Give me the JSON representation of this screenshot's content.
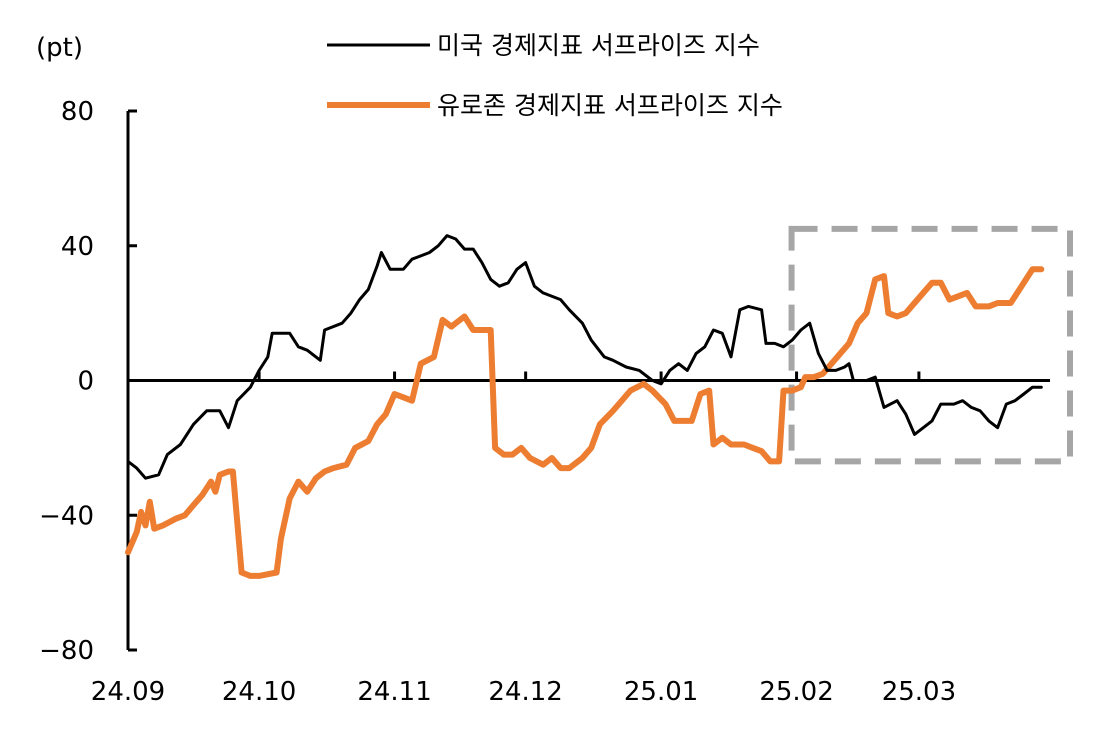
{
  "chart_data": {
    "type": "line",
    "ylabel": "(pt)",
    "ylim": [
      -80,
      80
    ],
    "yticks": [
      "80",
      "40",
      "0",
      "-40",
      "-80"
    ],
    "xlim": [
      "2024-09-01",
      "2025-03-31"
    ],
    "x_tick_labels": [
      "24.09",
      "24.10",
      "24.11",
      "24.12",
      "25.01",
      "25.02",
      "25.03"
    ],
    "x_tick_dates": [
      "2024-09-01",
      "2024-10-01",
      "2024-11-01",
      "2024-12-01",
      "2025-01-01",
      "2025-02-01",
      "2025-03-01"
    ],
    "grid": false,
    "legend_position": "top-center",
    "highlight_box": {
      "x_from": "2025-02-01",
      "x_to": "2025-03-31",
      "y_from": -24,
      "y_to": 45,
      "style": "dashed",
      "color": "#a6a6a6"
    },
    "series": [
      {
        "name": "미국 경제지표 서프라이즈 지수",
        "color": "#000000",
        "points": [
          [
            "2024-09-01",
            -24
          ],
          [
            "2024-09-03",
            -26
          ],
          [
            "2024-09-05",
            -29
          ],
          [
            "2024-09-08",
            -28
          ],
          [
            "2024-09-10",
            -22
          ],
          [
            "2024-09-13",
            -19
          ],
          [
            "2024-09-16",
            -13
          ],
          [
            "2024-09-19",
            -9
          ],
          [
            "2024-09-22",
            -9
          ],
          [
            "2024-09-24",
            -14
          ],
          [
            "2024-09-26",
            -6
          ],
          [
            "2024-09-29",
            -2
          ],
          [
            "2024-10-01",
            3
          ],
          [
            "2024-10-03",
            7
          ],
          [
            "2024-10-04",
            14
          ],
          [
            "2024-10-08",
            14
          ],
          [
            "2024-10-10",
            10
          ],
          [
            "2024-10-12",
            9
          ],
          [
            "2024-10-15",
            6
          ],
          [
            "2024-10-16",
            15
          ],
          [
            "2024-10-20",
            17
          ],
          [
            "2024-10-22",
            20
          ],
          [
            "2024-10-24",
            24
          ],
          [
            "2024-10-26",
            27
          ],
          [
            "2024-10-28",
            34
          ],
          [
            "2024-10-29",
            38
          ],
          [
            "2024-10-31",
            33
          ],
          [
            "2024-11-03",
            33
          ],
          [
            "2024-11-05",
            36
          ],
          [
            "2024-11-07",
            37
          ],
          [
            "2024-11-09",
            38
          ],
          [
            "2024-11-11",
            40
          ],
          [
            "2024-11-13",
            43
          ],
          [
            "2024-11-15",
            42
          ],
          [
            "2024-11-17",
            39
          ],
          [
            "2024-11-19",
            39
          ],
          [
            "2024-11-21",
            35
          ],
          [
            "2024-11-23",
            30
          ],
          [
            "2024-11-25",
            28
          ],
          [
            "2024-11-27",
            29
          ],
          [
            "2024-11-29",
            33
          ],
          [
            "2024-12-01",
            35
          ],
          [
            "2024-12-03",
            28
          ],
          [
            "2024-12-05",
            26
          ],
          [
            "2024-12-09",
            24
          ],
          [
            "2024-12-11",
            21
          ],
          [
            "2024-12-14",
            17
          ],
          [
            "2024-12-16",
            12
          ],
          [
            "2024-12-19",
            7
          ],
          [
            "2024-12-21",
            6
          ],
          [
            "2024-12-24",
            4
          ],
          [
            "2024-12-27",
            3
          ],
          [
            "2024-12-30",
            0
          ],
          [
            "2025-01-01",
            -1
          ],
          [
            "2025-01-03",
            3
          ],
          [
            "2025-01-05",
            5
          ],
          [
            "2025-01-07",
            3
          ],
          [
            "2025-01-09",
            8
          ],
          [
            "2025-01-11",
            10
          ],
          [
            "2025-01-13",
            15
          ],
          [
            "2025-01-15",
            14
          ],
          [
            "2025-01-17",
            7
          ],
          [
            "2025-01-19",
            21
          ],
          [
            "2025-01-21",
            22
          ],
          [
            "2025-01-24",
            21
          ],
          [
            "2025-01-25",
            11
          ],
          [
            "2025-01-27",
            11
          ],
          [
            "2025-01-29",
            10
          ],
          [
            "2025-01-31",
            12
          ],
          [
            "2025-02-02",
            15
          ],
          [
            "2025-02-04",
            17
          ],
          [
            "2025-02-06",
            8
          ],
          [
            "2025-02-08",
            3
          ],
          [
            "2025-02-10",
            3
          ],
          [
            "2025-02-12",
            4
          ],
          [
            "2025-02-13",
            5
          ],
          [
            "2025-02-14",
            0
          ],
          [
            "2025-02-17",
            0
          ],
          [
            "2025-02-19",
            1
          ],
          [
            "2025-02-21",
            -8
          ],
          [
            "2025-02-24",
            -6
          ],
          [
            "2025-02-26",
            -10
          ],
          [
            "2025-02-28",
            -16
          ],
          [
            "2025-03-02",
            -14
          ],
          [
            "2025-03-04",
            -12
          ],
          [
            "2025-03-06",
            -7
          ],
          [
            "2025-03-09",
            -7
          ],
          [
            "2025-03-11",
            -6
          ],
          [
            "2025-03-13",
            -8
          ],
          [
            "2025-03-15",
            -9
          ],
          [
            "2025-03-17",
            -12
          ],
          [
            "2025-03-19",
            -14
          ],
          [
            "2025-03-21",
            -7
          ],
          [
            "2025-03-23",
            -6
          ],
          [
            "2025-03-25",
            -4
          ],
          [
            "2025-03-27",
            -2
          ],
          [
            "2025-03-29",
            -2
          ]
        ]
      },
      {
        "name": "유로존 경제지표 서프라이즈 지수",
        "color": "#ed7d31",
        "points": [
          [
            "2024-09-01",
            -51
          ],
          [
            "2024-09-03",
            -45
          ],
          [
            "2024-09-04",
            -39
          ],
          [
            "2024-09-05",
            -43
          ],
          [
            "2024-09-06",
            -36
          ],
          [
            "2024-09-07",
            -44
          ],
          [
            "2024-09-09",
            -43
          ],
          [
            "2024-09-12",
            -41
          ],
          [
            "2024-09-14",
            -40
          ],
          [
            "2024-09-16",
            -37
          ],
          [
            "2024-09-18",
            -34
          ],
          [
            "2024-09-20",
            -30
          ],
          [
            "2024-09-21",
            -33
          ],
          [
            "2024-09-22",
            -28
          ],
          [
            "2024-09-24",
            -27
          ],
          [
            "2024-09-25",
            -27
          ],
          [
            "2024-09-27",
            -57
          ],
          [
            "2024-09-29",
            -58
          ],
          [
            "2024-10-01",
            -58
          ],
          [
            "2024-10-05",
            -57
          ],
          [
            "2024-10-06",
            -47
          ],
          [
            "2024-10-08",
            -35
          ],
          [
            "2024-10-10",
            -30
          ],
          [
            "2024-10-12",
            -33
          ],
          [
            "2024-10-14",
            -29
          ],
          [
            "2024-10-16",
            -27
          ],
          [
            "2024-10-18",
            -26
          ],
          [
            "2024-10-21",
            -25
          ],
          [
            "2024-10-23",
            -20
          ],
          [
            "2024-10-26",
            -18
          ],
          [
            "2024-10-28",
            -13
          ],
          [
            "2024-10-30",
            -10
          ],
          [
            "2024-11-01",
            -4
          ],
          [
            "2024-11-03",
            -5
          ],
          [
            "2024-11-05",
            -6
          ],
          [
            "2024-11-07",
            5
          ],
          [
            "2024-11-10",
            7
          ],
          [
            "2024-11-12",
            18
          ],
          [
            "2024-11-14",
            16
          ],
          [
            "2024-11-15",
            17
          ],
          [
            "2024-11-17",
            19
          ],
          [
            "2024-11-19",
            15
          ],
          [
            "2024-11-21",
            15
          ],
          [
            "2024-11-23",
            15
          ],
          [
            "2024-11-24",
            -20
          ],
          [
            "2024-11-26",
            -22
          ],
          [
            "2024-11-28",
            -22
          ],
          [
            "2024-11-30",
            -20
          ],
          [
            "2024-12-02",
            -23
          ],
          [
            "2024-12-05",
            -25
          ],
          [
            "2024-12-07",
            -23
          ],
          [
            "2024-12-09",
            -26
          ],
          [
            "2024-12-11",
            -26
          ],
          [
            "2024-12-14",
            -23
          ],
          [
            "2024-12-16",
            -20
          ],
          [
            "2024-12-18",
            -13
          ],
          [
            "2024-12-21",
            -9
          ],
          [
            "2024-12-23",
            -6
          ],
          [
            "2024-12-25",
            -3
          ],
          [
            "2024-12-28",
            -1
          ],
          [
            "2024-12-30",
            -3
          ],
          [
            "2025-01-02",
            -7
          ],
          [
            "2025-01-04",
            -12
          ],
          [
            "2025-01-06",
            -12
          ],
          [
            "2025-01-08",
            -12
          ],
          [
            "2025-01-10",
            -4
          ],
          [
            "2025-01-12",
            -3
          ],
          [
            "2025-01-13",
            -19
          ],
          [
            "2025-01-15",
            -17
          ],
          [
            "2025-01-17",
            -19
          ],
          [
            "2025-01-20",
            -19
          ],
          [
            "2025-01-22",
            -20
          ],
          [
            "2025-01-24",
            -21
          ],
          [
            "2025-01-26",
            -24
          ],
          [
            "2025-01-28",
            -24
          ],
          [
            "2025-01-29",
            -3
          ],
          [
            "2025-01-31",
            -3
          ],
          [
            "2025-02-02",
            -2
          ],
          [
            "2025-02-03",
            1
          ],
          [
            "2025-02-05",
            1
          ],
          [
            "2025-02-07",
            2
          ],
          [
            "2025-02-09",
            5
          ],
          [
            "2025-02-11",
            8
          ],
          [
            "2025-02-13",
            11
          ],
          [
            "2025-02-15",
            17
          ],
          [
            "2025-02-17",
            20
          ],
          [
            "2025-02-19",
            30
          ],
          [
            "2025-02-21",
            31
          ],
          [
            "2025-02-22",
            20
          ],
          [
            "2025-02-24",
            19
          ],
          [
            "2025-02-26",
            20
          ],
          [
            "2025-02-28",
            23
          ],
          [
            "2025-03-02",
            26
          ],
          [
            "2025-03-04",
            29
          ],
          [
            "2025-03-06",
            29
          ],
          [
            "2025-03-08",
            24
          ],
          [
            "2025-03-10",
            25
          ],
          [
            "2025-03-12",
            26
          ],
          [
            "2025-03-14",
            22
          ],
          [
            "2025-03-17",
            22
          ],
          [
            "2025-03-19",
            23
          ],
          [
            "2025-03-22",
            23
          ],
          [
            "2025-03-25",
            29
          ],
          [
            "2025-03-27",
            33
          ],
          [
            "2025-03-29",
            33
          ]
        ]
      }
    ]
  }
}
